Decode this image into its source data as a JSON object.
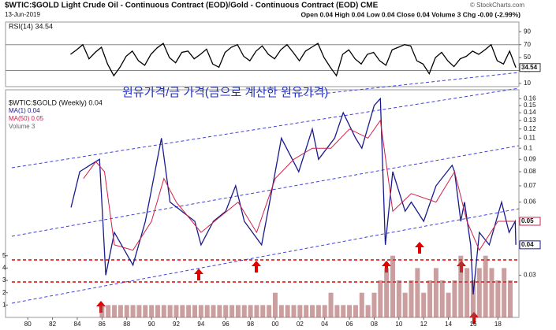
{
  "header": {
    "symbol_title": "$WTIC:$GOLD Light Crude Oil - Continuous Contract (EOD)/Gold - Continuous Contract (EOD) CME",
    "date": "13-Jun-2019",
    "quote": "Open 0.04 High 0.04 Low 0.04 Close 0.04 Volume 3 Chg -0.00 (-2.99%)",
    "copyright": "© StockCharts.com"
  },
  "annotation": "원유가격/금 가격(금으로 계산한 원유가격)",
  "chart_data": [
    {
      "type": "line",
      "legend": "RSI(14) 34.54",
      "value_label": "34.54",
      "ylim": [
        5,
        105
      ],
      "yticks": [
        10,
        30,
        50,
        70,
        90
      ],
      "guides": [
        30,
        70
      ],
      "xlim": [
        1978.2,
        2019.7
      ],
      "series": [
        {
          "name": "RSI(14)",
          "color": "#000000",
          "x": [
            1983.45,
            1983.95,
            1984.45,
            1984.95,
            1985.45,
            1985.95,
            1986.45,
            1986.95,
            1987.45,
            1987.95,
            1988.45,
            1988.95,
            1989.45,
            1989.95,
            1990.45,
            1990.95,
            1991.45,
            1991.95,
            1992.45,
            1992.95,
            1993.45,
            1993.95,
            1994.45,
            1994.95,
            1995.45,
            1995.95,
            1996.45,
            1996.95,
            1997.45,
            1997.95,
            1998.45,
            1998.95,
            1999.45,
            1999.95,
            2000.45,
            2000.95,
            2001.45,
            2001.95,
            2002.45,
            2002.95,
            2003.45,
            2003.95,
            2004.45,
            2004.95,
            2005.45,
            2005.95,
            2006.45,
            2006.95,
            2007.45,
            2007.95,
            2008.45,
            2008.95,
            2009.45,
            2009.95,
            2010.45,
            2010.95,
            2011.45,
            2011.95,
            2012.45,
            2012.95,
            2013.45,
            2013.95,
            2014.45,
            2014.95,
            2015.45,
            2015.95,
            2016.45,
            2016.95,
            2017.45,
            2017.95,
            2018.45,
            2018.95,
            2019.45
          ],
          "values": [
            55,
            62,
            70,
            48,
            58,
            66,
            40,
            22,
            35,
            52,
            60,
            45,
            38,
            55,
            65,
            72,
            50,
            42,
            58,
            60,
            48,
            55,
            63,
            40,
            35,
            58,
            66,
            70,
            52,
            45,
            60,
            68,
            55,
            48,
            62,
            70,
            58,
            45,
            60,
            66,
            72,
            50,
            35,
            22,
            55,
            62,
            48,
            40,
            55,
            58,
            45,
            38,
            62,
            66,
            70,
            68,
            45,
            40,
            25,
            50,
            58,
            45,
            36,
            48,
            52,
            60,
            55,
            62,
            70,
            45,
            40,
            60,
            34.54
          ]
        }
      ]
    },
    {
      "type": "line",
      "log_scale": true,
      "legend": "$WTIC:$GOLD (Weekly) 0.04",
      "ylim": [
        0.0201,
        0.174
      ],
      "yticks": [
        0.03,
        0.04,
        0.05,
        0.06,
        0.07,
        0.08,
        0.09,
        0.1,
        0.11,
        0.12,
        0.13,
        0.14,
        0.15,
        0.16
      ],
      "xlim": [
        1978.2,
        2019.7
      ],
      "xticks": [
        {
          "value": 1980,
          "label": "80"
        },
        {
          "value": 1982,
          "label": "82"
        },
        {
          "value": 1984,
          "label": "84"
        },
        {
          "value": 1986,
          "label": "86"
        },
        {
          "value": 1988,
          "label": "88"
        },
        {
          "value": 1990,
          "label": "90"
        },
        {
          "value": 1992,
          "label": "92"
        },
        {
          "value": 1994,
          "label": "94"
        },
        {
          "value": 1996,
          "label": "96"
        },
        {
          "value": 1998,
          "label": "98"
        },
        {
          "value": 2000,
          "label": "00"
        },
        {
          "value": 2002,
          "label": "02"
        },
        {
          "value": 2004,
          "label": "04"
        },
        {
          "value": 2006,
          "label": "06"
        },
        {
          "value": 2008,
          "label": "08"
        },
        {
          "value": 2010,
          "label": "10"
        },
        {
          "value": 2012,
          "label": "12"
        },
        {
          "value": 2014,
          "label": "14"
        },
        {
          "value": 2016,
          "label": "16"
        },
        {
          "value": 2018,
          "label": "18"
        }
      ],
      "series": [
        {
          "name": "MA(1) 0.04",
          "color": "#1a1a8c",
          "value_label": "0.04",
          "x": [
            1983.5,
            1984.2,
            1985.0,
            1985.8,
            1986.3,
            1987.0,
            1988.5,
            1989.5,
            1990.8,
            1991.5,
            1993.5,
            1994.0,
            1995.0,
            1996.0,
            1996.8,
            1997.5,
            1998.9,
            1999.8,
            2000.5,
            2001.9,
            2003.0,
            2003.5,
            2004.8,
            2005.5,
            2006.5,
            2007.0,
            2008.0,
            2008.5,
            2008.9,
            2009.5,
            2010.5,
            2011.0,
            2012.0,
            2013.0,
            2014.3,
            2014.5,
            2015.0,
            2015.3,
            2015.8,
            2016.0,
            2016.5,
            2017.3,
            2018.3,
            2018.9,
            2019.4,
            2019.45
          ],
          "values": [
            0.057,
            0.08,
            0.085,
            0.09,
            0.03,
            0.045,
            0.033,
            0.05,
            0.11,
            0.06,
            0.05,
            0.04,
            0.05,
            0.055,
            0.07,
            0.05,
            0.04,
            0.07,
            0.11,
            0.08,
            0.12,
            0.09,
            0.11,
            0.14,
            0.11,
            0.1,
            0.15,
            0.16,
            0.04,
            0.08,
            0.055,
            0.06,
            0.05,
            0.07,
            0.085,
            0.08,
            0.05,
            0.06,
            0.04,
            0.025,
            0.045,
            0.04,
            0.06,
            0.045,
            0.05,
            0.04
          ]
        },
        {
          "name": "MA(50) 0.05",
          "color": "#d0204a",
          "value_label": "0.05",
          "x": [
            1984.5,
            1985.5,
            1986.2,
            1987.0,
            1988.5,
            1990.0,
            1991.0,
            1992.0,
            1994.0,
            1995.5,
            1997.0,
            1998.5,
            2000.0,
            2001.5,
            2003.0,
            2004.5,
            2006.0,
            2007.5,
            2008.5,
            2009.5,
            2011.0,
            2013.0,
            2014.5,
            2015.5,
            2016.5,
            2018.0,
            2019.4
          ],
          "values": [
            0.075,
            0.088,
            0.08,
            0.04,
            0.038,
            0.05,
            0.075,
            0.06,
            0.045,
            0.052,
            0.06,
            0.045,
            0.075,
            0.09,
            0.1,
            0.1,
            0.12,
            0.11,
            0.13,
            0.055,
            0.065,
            0.06,
            0.08,
            0.05,
            0.038,
            0.05,
            0.05
          ]
        }
      ],
      "volume": {
        "name": "Volume 3",
        "color": "#a05050",
        "ylim": [
          0,
          5.3
        ],
        "yticks": [
          1,
          2,
          3,
          4,
          5
        ],
        "x": [
          1986,
          1986.5,
          1987,
          1987.5,
          1988,
          1988.5,
          1989,
          1989.5,
          1990,
          1990.5,
          1991,
          1991.5,
          1992,
          1992.5,
          1993,
          1993.5,
          1994,
          1994.5,
          1995,
          1995.5,
          1996,
          1996.5,
          1997,
          1997.5,
          1998,
          1998.5,
          1999,
          1999.5,
          2000,
          2000.5,
          2001,
          2001.5,
          2002,
          2002.5,
          2003,
          2003.5,
          2004,
          2004.5,
          2005,
          2005.5,
          2006,
          2006.5,
          2007,
          2007.5,
          2008,
          2008.5,
          2009,
          2009.5,
          2010,
          2010.5,
          2011,
          2011.5,
          2012,
          2012.5,
          2013,
          2013.5,
          2014,
          2014.5,
          2015,
          2015.5,
          2016,
          2016.5,
          2017,
          2017.5,
          2018,
          2018.5,
          2019
        ],
        "values": [
          1,
          1,
          1,
          1,
          1,
          1,
          1,
          1,
          1,
          1,
          1,
          1,
          1,
          1,
          1,
          1,
          1,
          1,
          1,
          1,
          1,
          1,
          1,
          1,
          1,
          1,
          1,
          1,
          2,
          1,
          1,
          1,
          1,
          1,
          1,
          1,
          1,
          2,
          1,
          1,
          1,
          1,
          2,
          1,
          2,
          3,
          4,
          5,
          3,
          2,
          3,
          4,
          2,
          3,
          4,
          3,
          2,
          3,
          5,
          4,
          3,
          4,
          5,
          4,
          3,
          4,
          3
        ]
      }
    }
  ]
}
